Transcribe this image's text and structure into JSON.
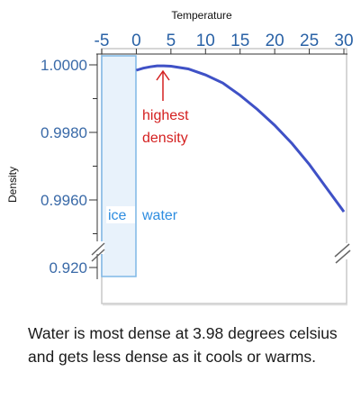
{
  "chart_data": {
    "type": "line",
    "xlabel": "Temperature",
    "ylabel": "Density",
    "xlim": [
      -5,
      30
    ],
    "x_ticks": [
      "-5",
      "0",
      "5",
      "10",
      "15",
      "20",
      "25",
      "30"
    ],
    "y_ticks": [
      "1.0000",
      "0.9980",
      "0.9960",
      "0.920"
    ],
    "y_axis_break": true,
    "series": [
      {
        "color": "#3f51c6",
        "x": [
          0,
          1,
          2,
          3,
          3.98,
          5,
          7.5,
          10,
          12.5,
          15,
          17.5,
          20,
          22.5,
          25,
          27.5,
          30
        ],
        "y": [
          0.99984,
          0.9999,
          0.99994,
          0.99997,
          0.99997,
          0.99996,
          0.99988,
          0.9997,
          0.99946,
          0.9991,
          0.99868,
          0.99821,
          0.99767,
          0.99705,
          0.99635,
          0.99565
        ]
      }
    ],
    "regions": [
      {
        "label": "ice",
        "x_range": [
          -5,
          0
        ]
      },
      {
        "label": "water",
        "x_range": [
          0,
          30
        ]
      }
    ],
    "annotation": {
      "line1": "highest",
      "line2": "density",
      "x": 3.98,
      "color": "#d42020"
    }
  },
  "caption": "Water is most dense at 3.98 degrees celsius and gets less dense as it cools or warms."
}
